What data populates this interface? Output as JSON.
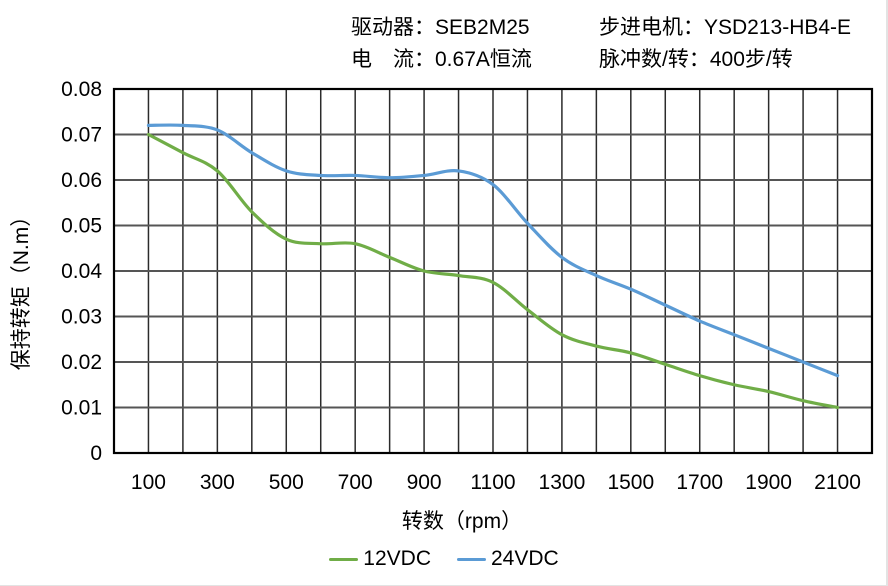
{
  "header": {
    "driver_label": "驱动器：SEB2M25",
    "current_label": "电　流：0.67A恒流",
    "motor_label": "步进电机：YSD213-HB4-E",
    "pulses_label": "脉冲数/转：400步/转"
  },
  "chart_data": {
    "type": "line",
    "title": "",
    "xlabel": "转数（rpm）",
    "ylabel": "保持转矩（N.m）",
    "xlim": [
      0,
      2200
    ],
    "ylim": [
      0,
      0.08
    ],
    "grid": true,
    "x_gridline_step": 100,
    "y_gridline_step": 0.01,
    "x": [
      100,
      200,
      300,
      400,
      500,
      600,
      700,
      800,
      900,
      1000,
      1100,
      1200,
      1300,
      1400,
      1500,
      1600,
      1700,
      1800,
      1900,
      2000,
      2100
    ],
    "series": [
      {
        "name": "12VDC",
        "color": "#70AD47",
        "values": [
          0.07,
          0.066,
          0.062,
          0.053,
          0.047,
          0.046,
          0.046,
          0.043,
          0.04,
          0.039,
          0.0375,
          0.0315,
          0.026,
          0.0235,
          0.022,
          0.0195,
          0.017,
          0.015,
          0.0135,
          0.0115,
          0.01
        ]
      },
      {
        "name": "24VDC",
        "color": "#5B9BD5",
        "values": [
          0.072,
          0.072,
          0.071,
          0.066,
          0.062,
          0.061,
          0.061,
          0.0605,
          0.061,
          0.062,
          0.059,
          0.0505,
          0.043,
          0.039,
          0.036,
          0.0325,
          0.029,
          0.026,
          0.023,
          0.02,
          0.017
        ]
      }
    ],
    "x_tick_values": [
      100,
      300,
      500,
      700,
      900,
      1100,
      1300,
      1500,
      1700,
      1900,
      2100
    ],
    "x_tick_labels": [
      "100",
      "300",
      "500",
      "700",
      "900",
      "1100",
      "1300",
      "1500",
      "1700",
      "1900",
      "2100"
    ],
    "y_tick_values": [
      0,
      0.01,
      0.02,
      0.03,
      0.04,
      0.05,
      0.06,
      0.07,
      0.08
    ],
    "y_tick_labels": [
      "0",
      "0.01",
      "0.02",
      "0.03",
      "0.04",
      "0.05",
      "0.06",
      "0.07",
      "0.08"
    ],
    "legend_position": "bottom-center",
    "colors": {
      "grid_vertical": "#2b2b2b",
      "grid_horizontal": "#555555",
      "plot_border": "#000000",
      "text": "#000000"
    }
  }
}
